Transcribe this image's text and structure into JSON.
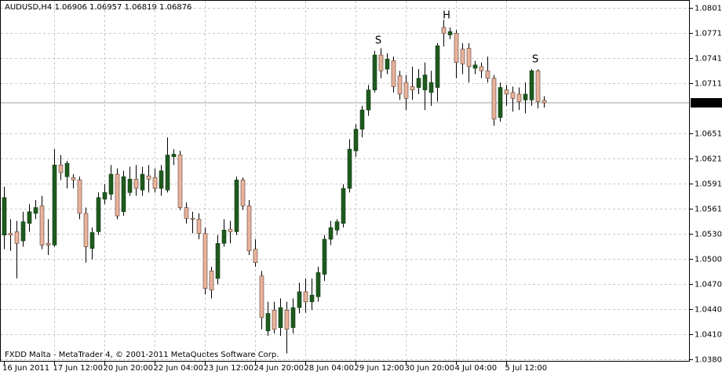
{
  "chart_data": {
    "type": "candlestick",
    "title": "AUDUSD,H4  1.06906 1.06957 1.06819 1.06876",
    "footer": "FXDD Malta - MetaTrader 4, © 2001-2011 MetaQuotes Software Corp.",
    "annotations": [
      "S",
      "H",
      "S"
    ],
    "current_price": 1.06876,
    "bull_color": "#1f5a1f",
    "bear_color": "#e8b39c",
    "grid": true,
    "ylim": [
      1.03781,
      1.08109
    ],
    "yticks": [
      1.08015,
      1.07715,
      1.07415,
      1.07115,
      {
        "value": 1.0651,
        "label": "1.06510"
      },
      {
        "value": 1.0621,
        "label": "1.06210"
      },
      {
        "value": 1.0591,
        "label": "1.05910"
      },
      {
        "value": 1.0561,
        "label": "1.05610"
      },
      1.05305,
      1.05005,
      1.04705,
      1.04405,
      1.04105,
      {
        "value": 1.038,
        "label": "1.03800"
      }
    ],
    "categories": [
      "16 Jun 2011",
      null,
      null,
      null,
      null,
      null,
      null,
      null,
      "17 Jun 12:00",
      null,
      null,
      null,
      null,
      null,
      null,
      null,
      "20 Jun 20:00",
      null,
      null,
      null,
      null,
      null,
      null,
      null,
      "22 Jun 04:00",
      null,
      null,
      null,
      null,
      null,
      null,
      null,
      "23 Jun 12:00",
      null,
      null,
      null,
      null,
      null,
      null,
      null,
      "24 Jun 20:00",
      null,
      null,
      null,
      null,
      null,
      null,
      null,
      "28 Jun 04:00",
      null,
      null,
      null,
      null,
      null,
      null,
      null,
      "29 Jun 12:00",
      null,
      null,
      null,
      null,
      null,
      null,
      null,
      "30 Jun 20:00",
      null,
      null,
      null,
      null,
      null,
      null,
      null,
      "4 Jul 04:00",
      null,
      null,
      null,
      null,
      null,
      null,
      null,
      "5 Jul 12:00",
      null,
      null,
      null,
      null,
      null,
      null
    ],
    "open": [
      1.0529,
      1.0531,
      1.0533,
      1.0522,
      1.0543,
      1.0555,
      1.0564,
      1.0519,
      1.0517,
      1.0613,
      1.0599,
      1.0598,
      1.0595,
      1.0555,
      1.0513,
      1.0533,
      1.0572,
      1.0578,
      1.0602,
      1.0557,
      1.058,
      1.0596,
      1.0583,
      1.06,
      1.0598,
      1.0585,
      1.0583,
      1.0623,
      1.0625,
      1.0562,
      1.0549,
      1.0548,
      1.0531,
      1.0486,
      1.0477,
      1.0519,
      1.0536,
      1.0533,
      1.0595,
      1.0564,
      1.0512,
      1.048,
      1.0414,
      1.0439,
      1.0418,
      1.0439,
      1.0418,
      1.0442,
      1.0461,
      1.0449,
      1.0455,
      1.0482,
      1.0524,
      1.0535,
      1.0543,
      1.0585,
      1.063,
      1.0656,
      1.0679,
      1.0703,
      1.0745,
      1.0728,
      1.0738,
      1.072,
      1.0712,
      1.0707,
      1.0706,
      1.0703,
      1.07,
      1.0706,
      1.0778,
      1.0769,
      1.0771,
      1.0752,
      1.0753,
      1.0729,
      1.0731,
      1.0726,
      1.0717,
      1.067,
      1.0703,
      1.07,
      1.0698,
      1.0691,
      1.0691,
      1.0726,
      1.06906
    ],
    "high": [
      1.0587,
      1.0548,
      1.0546,
      1.0557,
      1.0566,
      1.0571,
      1.0576,
      1.0548,
      1.0632,
      1.0625,
      1.0618,
      1.0602,
      1.0599,
      1.0562,
      1.0538,
      1.058,
      1.059,
      1.0613,
      1.0609,
      1.0606,
      1.0611,
      1.0613,
      1.0611,
      1.0613,
      1.0609,
      1.0613,
      1.0646,
      1.0632,
      1.063,
      1.0568,
      1.0557,
      1.0555,
      1.0538,
      1.0491,
      1.0529,
      1.0548,
      1.0546,
      1.0599,
      1.0598,
      1.0571,
      1.0524,
      1.0486,
      1.0449,
      1.0449,
      1.0453,
      1.0449,
      1.0453,
      1.0472,
      1.0477,
      1.0477,
      1.0491,
      1.0529,
      1.0546,
      1.0548,
      1.059,
      1.0644,
      1.0662,
      1.0684,
      1.0709,
      1.075,
      1.0753,
      1.0747,
      1.0743,
      1.0726,
      1.0721,
      1.0731,
      1.0728,
      1.0736,
      1.0726,
      1.0759,
      1.0787,
      1.0778,
      1.0775,
      1.0759,
      1.0759,
      1.0738,
      1.0736,
      1.0743,
      1.0721,
      1.0712,
      1.0709,
      1.0707,
      1.0706,
      1.0712,
      1.0728,
      1.0728,
      1.06957
    ],
    "low": [
      1.0512,
      1.051,
      1.0477,
      1.0515,
      1.0533,
      1.0548,
      1.0512,
      1.0505,
      1.0515,
      1.0595,
      1.0585,
      1.0585,
      1.0548,
      1.0496,
      1.05,
      1.0529,
      1.0566,
      1.0571,
      1.0548,
      1.0552,
      1.0576,
      1.0576,
      1.0576,
      1.058,
      1.058,
      1.0576,
      1.058,
      1.0613,
      1.0559,
      1.0543,
      1.0531,
      1.0524,
      1.0458,
      1.0453,
      1.047,
      1.0515,
      1.0519,
      1.0529,
      1.0559,
      1.0505,
      1.0491,
      1.0416,
      1.0408,
      1.0411,
      1.0408,
      1.0387,
      1.0411,
      1.0435,
      1.0436,
      1.0439,
      1.0449,
      1.0474,
      1.0517,
      1.0529,
      1.0538,
      1.058,
      1.0623,
      1.0646,
      1.0672,
      1.07,
      1.0717,
      1.0722,
      1.07,
      1.0691,
      1.0679,
      1.0691,
      1.0698,
      1.0679,
      1.0684,
      1.0689,
      1.0755,
      1.0764,
      1.0717,
      1.0722,
      1.0712,
      1.0722,
      1.0717,
      1.0712,
      1.066,
      1.0665,
      1.0684,
      1.0677,
      1.0679,
      1.0675,
      1.0684,
      1.0681,
      1.06819
    ],
    "close": [
      1.0574,
      1.0529,
      1.0519,
      1.0545,
      1.0557,
      1.0562,
      1.0517,
      1.0517,
      1.0613,
      1.0604,
      1.0615,
      1.0595,
      1.0555,
      1.0515,
      1.0532,
      1.0574,
      1.058,
      1.0602,
      1.0552,
      1.0599,
      1.0596,
      1.0585,
      1.0602,
      1.0596,
      1.0585,
      1.0606,
      1.0625,
      1.0626,
      1.0562,
      1.0549,
      1.0548,
      1.0531,
      1.0465,
      1.0463,
      1.0519,
      1.0535,
      1.0533,
      1.0595,
      1.0564,
      1.051,
      1.0496,
      1.043,
      1.0435,
      1.0416,
      1.0442,
      1.0416,
      1.0442,
      1.0461,
      1.0449,
      1.0457,
      1.0484,
      1.0524,
      1.0538,
      1.0545,
      1.0585,
      1.0632,
      1.0656,
      1.0679,
      1.0703,
      1.0745,
      1.0726,
      1.074,
      1.0707,
      1.0698,
      1.0693,
      1.0703,
      1.0717,
      1.0721,
      1.0712,
      1.0756,
      1.0771,
      1.0773,
      1.0736,
      1.0734,
      1.0731,
      1.0733,
      1.0726,
      1.0717,
      1.0668,
      1.0706,
      1.0698,
      1.0693,
      1.0689,
      1.0698,
      1.0726,
      1.0689,
      1.06876
    ]
  }
}
